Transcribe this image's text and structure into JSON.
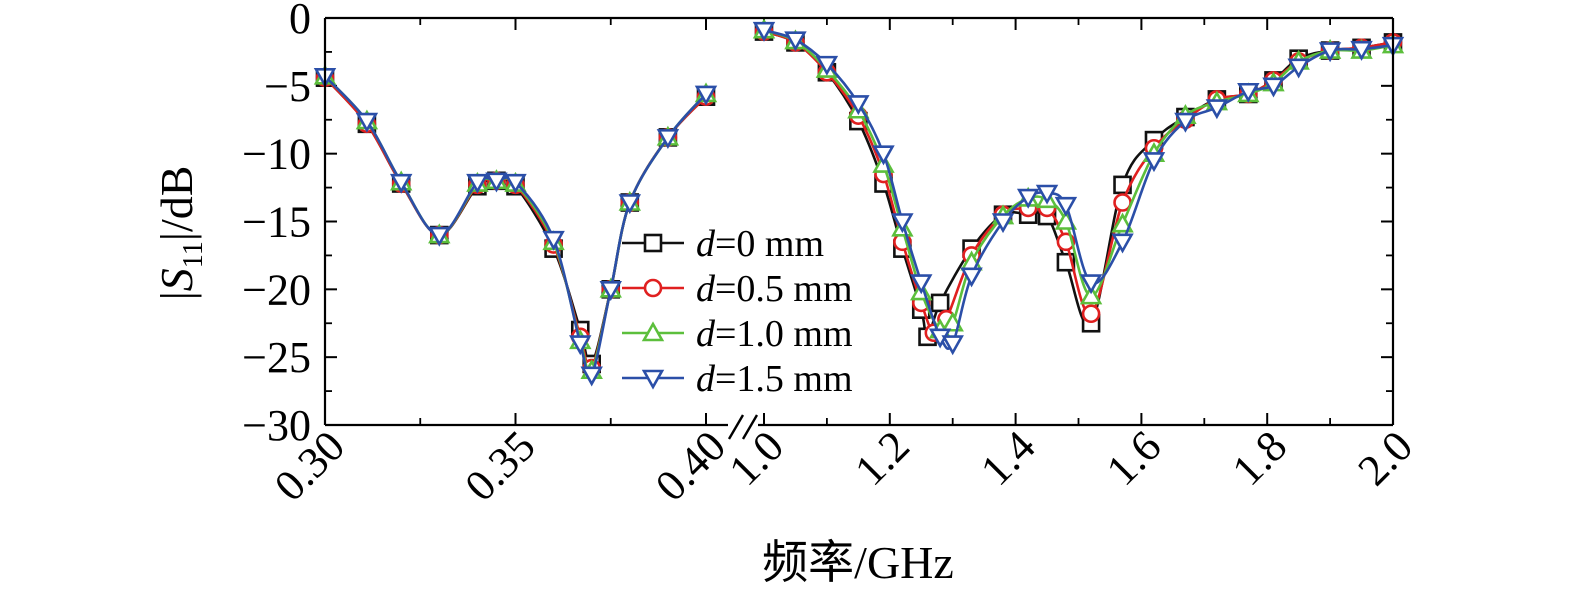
{
  "chart_data": {
    "type": "line",
    "ylabel": "|S11|/dB",
    "ylabel_parts": {
      "pre": "|",
      "var": "S",
      "sub": "11",
      "post": "|/dB"
    },
    "xlabel": "频率/GHz",
    "ylim": [
      -30,
      0
    ],
    "yticks": [
      0,
      -5,
      -10,
      -15,
      -20,
      -25,
      -30
    ],
    "ytick_labels": [
      "0",
      "−5",
      "−10",
      "−15",
      "−20",
      "−25",
      "−30"
    ],
    "x_break": true,
    "segments": [
      {
        "xlim": [
          0.3,
          0.4
        ],
        "xticks": [
          0.3,
          0.35,
          0.4
        ],
        "xtick_labels": [
          "0.30",
          "0.35",
          "0.40"
        ]
      },
      {
        "xlim": [
          1.0,
          2.0
        ],
        "xticks": [
          1.0,
          1.2,
          1.4,
          1.6,
          1.8,
          2.0
        ],
        "xtick_labels": [
          "1.0",
          "1.2",
          "1.4",
          "1.6",
          "1.8",
          "2.0"
        ]
      }
    ],
    "grid": false,
    "legend_position": "center",
    "series": [
      {
        "name": "d=0 mm",
        "legend_var": "d",
        "legend_rest": "=0 mm",
        "color": "#111111",
        "marker": "square",
        "low": [
          [
            0.3,
            -4.4
          ],
          [
            0.311,
            -7.8
          ],
          [
            0.32,
            -12.2
          ],
          [
            0.33,
            -16.0
          ],
          [
            0.34,
            -12.4
          ],
          [
            0.345,
            -12.0
          ],
          [
            0.35,
            -12.4
          ],
          [
            0.36,
            -17.0
          ],
          [
            0.367,
            -23.0
          ],
          [
            0.37,
            -25.5
          ],
          [
            0.375,
            -20.0
          ],
          [
            0.38,
            -13.6
          ],
          [
            0.39,
            -8.8
          ],
          [
            0.4,
            -5.8
          ]
        ],
        "high": [
          [
            1.0,
            -1.0
          ],
          [
            1.05,
            -1.8
          ],
          [
            1.1,
            -4.0
          ],
          [
            1.15,
            -7.6
          ],
          [
            1.19,
            -12.2
          ],
          [
            1.22,
            -17.0
          ],
          [
            1.25,
            -21.5
          ],
          [
            1.26,
            -23.5
          ],
          [
            1.28,
            -21.0
          ],
          [
            1.33,
            -17.0
          ],
          [
            1.38,
            -14.5
          ],
          [
            1.42,
            -14.5
          ],
          [
            1.45,
            -14.6
          ],
          [
            1.48,
            -18.0
          ],
          [
            1.52,
            -22.5
          ],
          [
            1.57,
            -12.3
          ],
          [
            1.62,
            -9.0
          ],
          [
            1.67,
            -7.3
          ],
          [
            1.72,
            -6.0
          ],
          [
            1.77,
            -5.6
          ],
          [
            1.81,
            -4.6
          ],
          [
            1.85,
            -3.0
          ],
          [
            1.9,
            -2.4
          ],
          [
            1.95,
            -2.2
          ],
          [
            2.0,
            -1.8
          ]
        ]
      },
      {
        "name": "d=0.5 mm",
        "legend_var": "d",
        "legend_rest": "=0.5 mm",
        "color": "#e02020",
        "marker": "circle",
        "low": [
          [
            0.3,
            -4.4
          ],
          [
            0.311,
            -7.8
          ],
          [
            0.32,
            -12.2
          ],
          [
            0.33,
            -16.0
          ],
          [
            0.34,
            -12.3
          ],
          [
            0.345,
            -12.0
          ],
          [
            0.35,
            -12.3
          ],
          [
            0.36,
            -16.7
          ],
          [
            0.367,
            -23.5
          ],
          [
            0.37,
            -25.8
          ],
          [
            0.375,
            -20.0
          ],
          [
            0.38,
            -13.6
          ],
          [
            0.39,
            -8.8
          ],
          [
            0.4,
            -5.8
          ]
        ],
        "high": [
          [
            1.0,
            -1.0
          ],
          [
            1.05,
            -1.8
          ],
          [
            1.1,
            -4.0
          ],
          [
            1.15,
            -7.2
          ],
          [
            1.19,
            -11.5
          ],
          [
            1.22,
            -16.5
          ],
          [
            1.25,
            -21.0
          ],
          [
            1.27,
            -23.2
          ],
          [
            1.29,
            -22.2
          ],
          [
            1.33,
            -17.5
          ],
          [
            1.38,
            -14.5
          ],
          [
            1.42,
            -14.0
          ],
          [
            1.45,
            -14.0
          ],
          [
            1.48,
            -16.5
          ],
          [
            1.52,
            -21.8
          ],
          [
            1.57,
            -13.6
          ],
          [
            1.62,
            -9.6
          ],
          [
            1.67,
            -7.5
          ],
          [
            1.72,
            -6.0
          ],
          [
            1.77,
            -5.6
          ],
          [
            1.81,
            -4.6
          ],
          [
            1.85,
            -3.2
          ],
          [
            1.9,
            -2.4
          ],
          [
            1.95,
            -2.2
          ],
          [
            2.0,
            -1.8
          ]
        ]
      },
      {
        "name": "d=1.0 mm",
        "legend_var": "d",
        "legend_rest": "=1.0 mm",
        "color": "#5cbf3c",
        "marker": "triangle-up",
        "low": [
          [
            0.3,
            -4.3
          ],
          [
            0.311,
            -7.6
          ],
          [
            0.32,
            -12.1
          ],
          [
            0.33,
            -16.0
          ],
          [
            0.34,
            -12.2
          ],
          [
            0.345,
            -12.0
          ],
          [
            0.35,
            -12.2
          ],
          [
            0.36,
            -16.5
          ],
          [
            0.367,
            -23.8
          ],
          [
            0.37,
            -26.0
          ],
          [
            0.375,
            -20.0
          ],
          [
            0.38,
            -13.6
          ],
          [
            0.39,
            -8.8
          ],
          [
            0.4,
            -5.6
          ]
        ],
        "high": [
          [
            1.0,
            -0.9
          ],
          [
            1.05,
            -1.7
          ],
          [
            1.1,
            -3.8
          ],
          [
            1.15,
            -6.8
          ],
          [
            1.19,
            -10.8
          ],
          [
            1.22,
            -15.5
          ],
          [
            1.25,
            -20.2
          ],
          [
            1.28,
            -23.0
          ],
          [
            1.3,
            -22.5
          ],
          [
            1.33,
            -18.0
          ],
          [
            1.38,
            -14.6
          ],
          [
            1.42,
            -13.3
          ],
          [
            1.45,
            -13.4
          ],
          [
            1.48,
            -15.0
          ],
          [
            1.52,
            -20.5
          ],
          [
            1.57,
            -15.2
          ],
          [
            1.62,
            -10.0
          ],
          [
            1.67,
            -7.2
          ],
          [
            1.72,
            -6.2
          ],
          [
            1.77,
            -5.6
          ],
          [
            1.81,
            -4.8
          ],
          [
            1.85,
            -3.2
          ],
          [
            1.9,
            -2.4
          ],
          [
            1.95,
            -2.4
          ],
          [
            2.0,
            -2.0
          ]
        ]
      },
      {
        "name": "d=1.5 mm",
        "legend_var": "d",
        "legend_rest": "=1.5 mm",
        "color": "#2b4fa8",
        "marker": "triangle-down",
        "low": [
          [
            0.3,
            -4.3
          ],
          [
            0.311,
            -7.6
          ],
          [
            0.32,
            -12.1
          ],
          [
            0.33,
            -16.0
          ],
          [
            0.34,
            -12.1
          ],
          [
            0.345,
            -12.0
          ],
          [
            0.35,
            -12.1
          ],
          [
            0.36,
            -16.3
          ],
          [
            0.367,
            -24.0
          ],
          [
            0.37,
            -26.3
          ],
          [
            0.375,
            -20.0
          ],
          [
            0.38,
            -13.6
          ],
          [
            0.39,
            -8.8
          ],
          [
            0.4,
            -5.6
          ]
        ],
        "high": [
          [
            1.0,
            -0.9
          ],
          [
            1.05,
            -1.6
          ],
          [
            1.1,
            -3.4
          ],
          [
            1.15,
            -6.3
          ],
          [
            1.19,
            -10.0
          ],
          [
            1.22,
            -15.0
          ],
          [
            1.25,
            -19.5
          ],
          [
            1.28,
            -23.5
          ],
          [
            1.3,
            -24.0
          ],
          [
            1.33,
            -19.0
          ],
          [
            1.38,
            -15.0
          ],
          [
            1.42,
            -13.2
          ],
          [
            1.45,
            -12.9
          ],
          [
            1.48,
            -13.8
          ],
          [
            1.52,
            -19.5
          ],
          [
            1.57,
            -16.5
          ],
          [
            1.62,
            -10.5
          ],
          [
            1.67,
            -7.6
          ],
          [
            1.72,
            -6.6
          ],
          [
            1.77,
            -5.4
          ],
          [
            1.81,
            -5.0
          ],
          [
            1.85,
            -3.6
          ],
          [
            1.9,
            -2.4
          ],
          [
            1.95,
            -2.3
          ],
          [
            2.0,
            -2.0
          ]
        ]
      }
    ]
  }
}
